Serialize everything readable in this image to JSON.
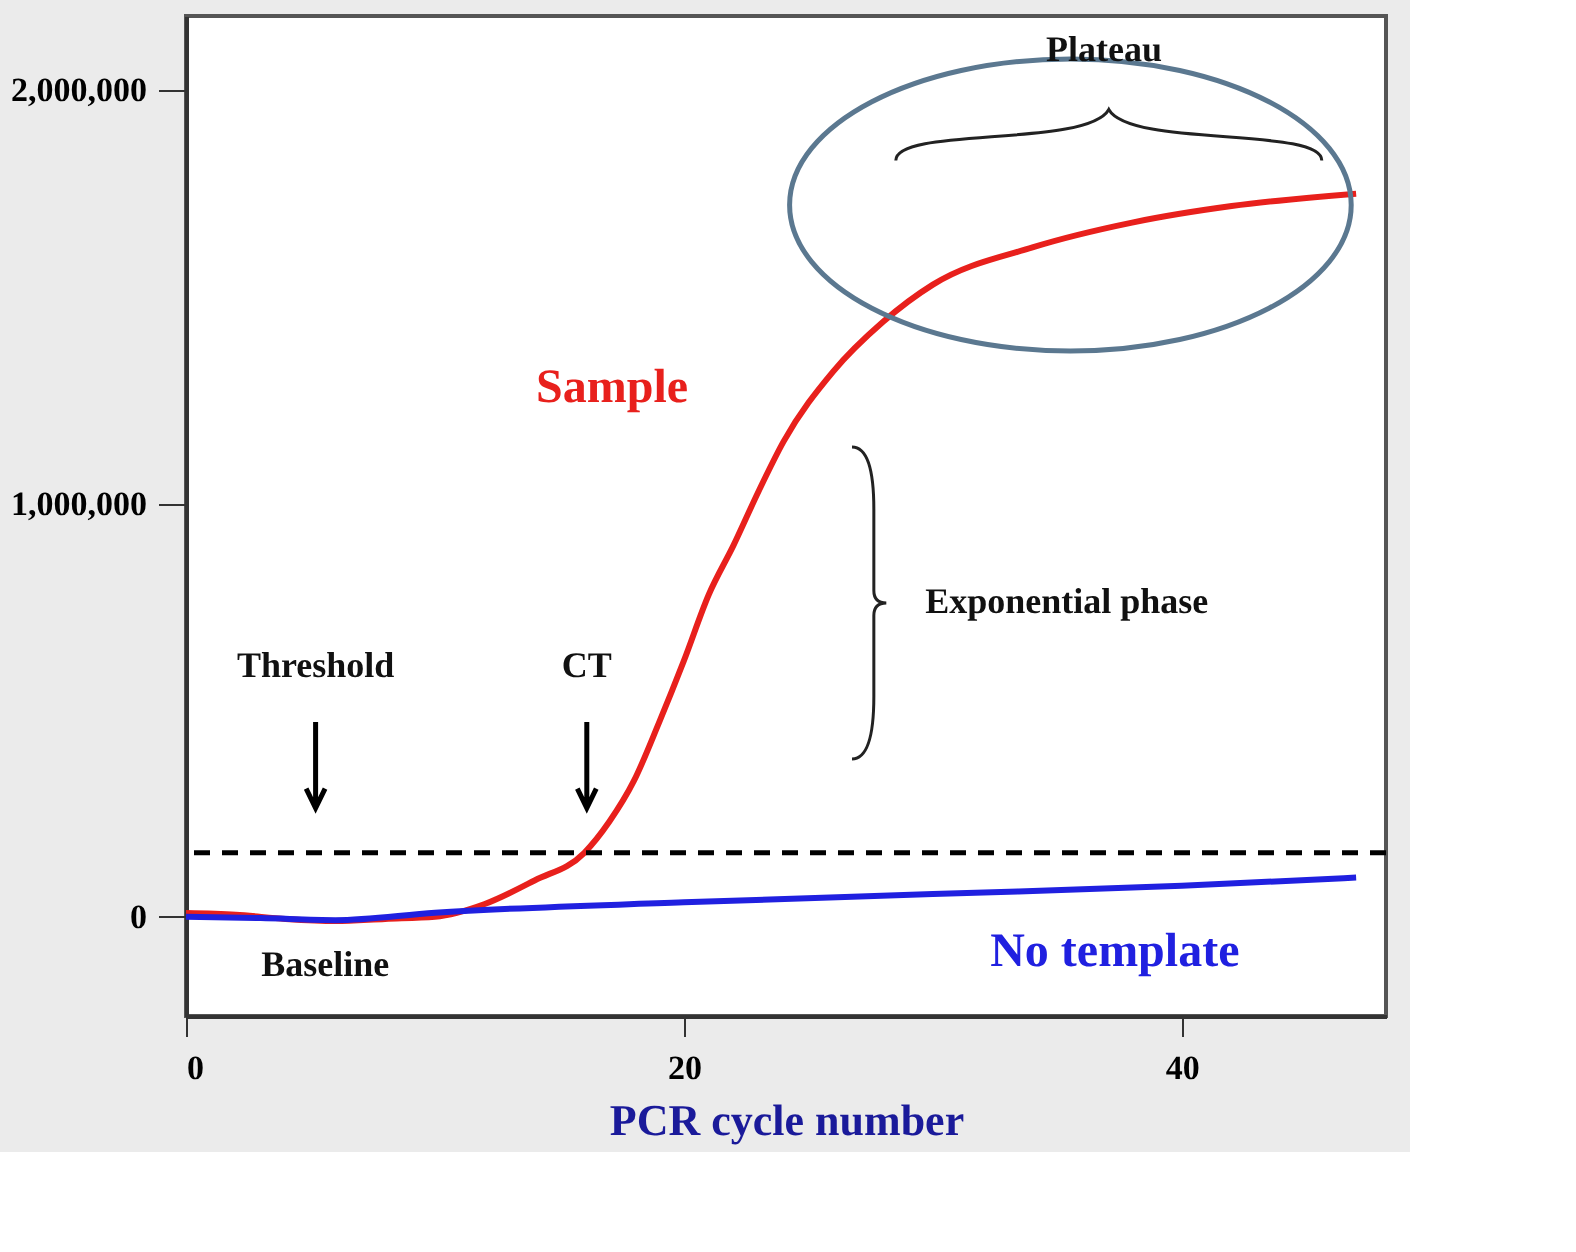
{
  "chart_data": {
    "type": "line",
    "xlabel": "PCR cycle number",
    "xlim": [
      0,
      48.2
    ],
    "xticks": [
      0,
      20,
      40
    ],
    "ylim": [
      -240000,
      2180000
    ],
    "yticks": [
      {
        "value": 0,
        "label": "0"
      },
      {
        "value": 1000000,
        "label": "1,000,000"
      },
      {
        "value": 2000000,
        "label": "2,000,000"
      }
    ],
    "grid": false,
    "legend": false,
    "marker": "none",
    "line_style": "solid",
    "series": [
      {
        "name": "Sample",
        "color": "#e8201c",
        "x": [
          0,
          2,
          4,
          6,
          8,
          10,
          12,
          14,
          16,
          17,
          18,
          19,
          20,
          21,
          22,
          23,
          24,
          26,
          28,
          30,
          34,
          38,
          42,
          47
        ],
        "values": [
          9000,
          5000,
          -5000,
          -10000,
          -5000,
          0,
          31000,
          88000,
          155000,
          230000,
          330000,
          470000,
          620000,
          780000,
          900000,
          1030000,
          1150000,
          1320000,
          1440000,
          1530000,
          1620000,
          1680000,
          1720000,
          1750000
        ]
      },
      {
        "name": "No template",
        "color": "#2020e0",
        "x": [
          0,
          3,
          6,
          10,
          20,
          30,
          40,
          47
        ],
        "values": [
          0,
          -3000,
          -8000,
          10000,
          35000,
          55000,
          75000,
          95000
        ]
      }
    ],
    "ref_lines": [
      {
        "axis": "y",
        "value": 155000,
        "color": "#000000",
        "line_style": "dashed"
      }
    ],
    "annotations": [
      "Threshold",
      "CT",
      "Plateau",
      "Exponential phase",
      "Baseline"
    ]
  }
}
